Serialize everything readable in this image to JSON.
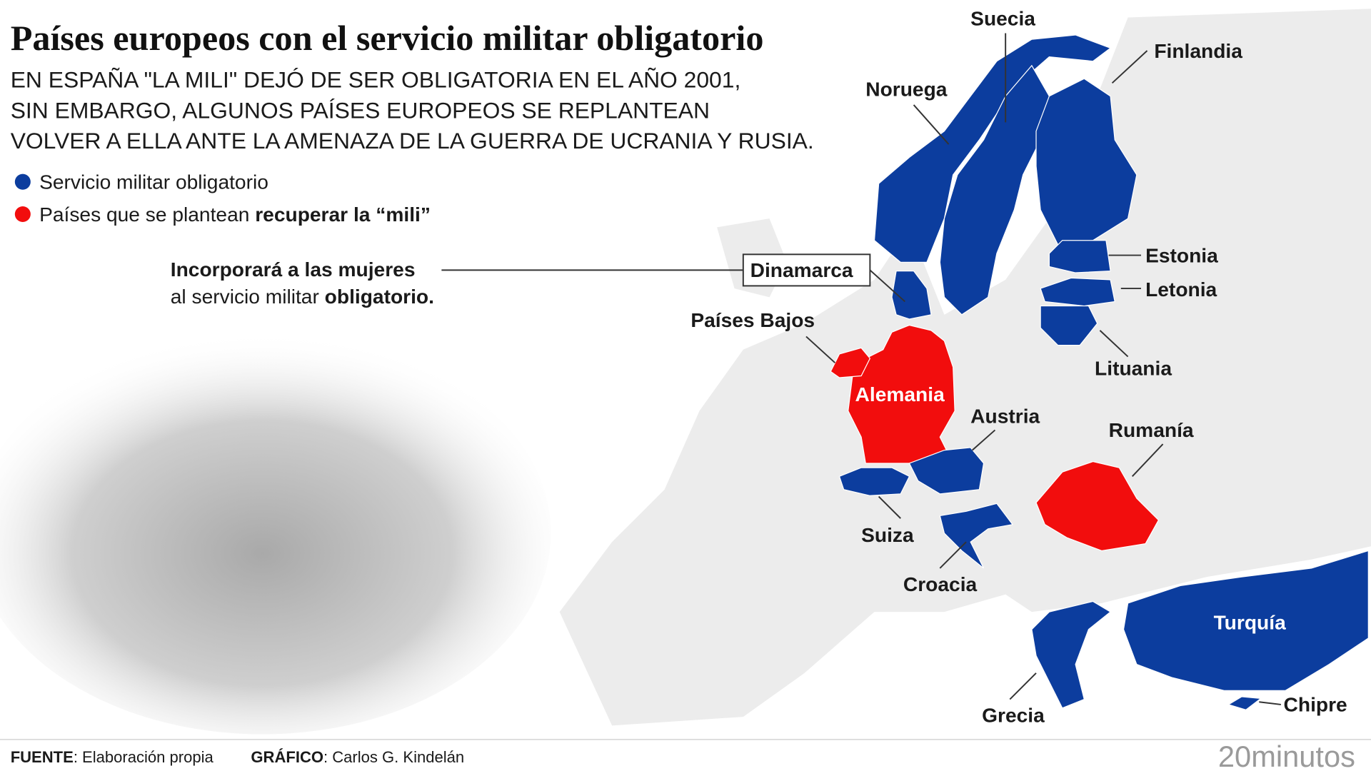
{
  "header": {
    "title": "Países europeos con el servicio militar obligatorio",
    "subtitle": [
      "EN ESPAÑA \"LA MILI\" DEJÓ DE SER OBLIGATORIA EN EL AÑO 2001,",
      "SIN EMBARGO, ALGUNOS PAÍSES EUROPEOS SE REPLANTEAN",
      "VOLVER A ELLA ANTE LA AMENAZA DE LA GUERRA DE UCRANIA Y RUSIA."
    ]
  },
  "legend": {
    "items": [
      {
        "text": "Servicio militar obligatorio",
        "color": "#0c3d9e"
      },
      {
        "text": "Países que se plantean ",
        "bold": "recuperar la “mili”",
        "color": "#f20d0d"
      }
    ]
  },
  "annotation": {
    "line1": "Incorporará a las mujeres",
    "line2": "al servicio militar ",
    "line2_bold": "obligatorio."
  },
  "countries": {
    "suecia": "Suecia",
    "finlandia": "Finlandia",
    "noruega": "Noruega",
    "estonia": "Estonia",
    "letonia": "Letonia",
    "lituania": "Lituania",
    "dinamarca": "Dinamarca",
    "paises_bajos": "Países Bajos",
    "alemania": "Alemania",
    "austria": "Austria",
    "rumania": "Rumanía",
    "suiza": "Suiza",
    "croacia": "Croacia",
    "turquia": "Turquía",
    "grecia": "Grecia",
    "chipre": "Chipre"
  },
  "footer": {
    "source_label": "FUENTE",
    "source_text": ": Elaboración propia",
    "graphic_label": "GRÁFICO",
    "graphic_text": ": Carlos G. Kindelán",
    "logo": "20minutos"
  }
}
